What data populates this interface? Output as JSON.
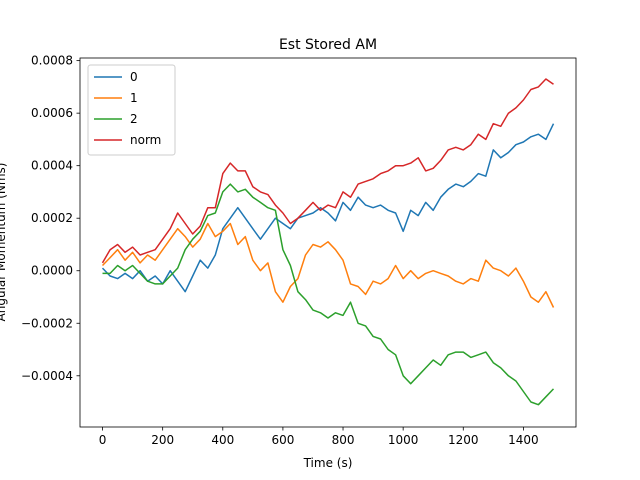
{
  "chart_data": {
    "type": "line",
    "title": "Est Stored AM",
    "xlabel": "Time (s)",
    "ylabel": "Angular Momentum (Nms)",
    "xlim": [
      -75,
      1575
    ],
    "ylim": [
      -0.000595,
      0.00081
    ],
    "xticks": [
      0,
      200,
      400,
      600,
      800,
      1000,
      1200,
      1400
    ],
    "yticks": [
      -0.0004,
      -0.0002,
      0.0,
      0.0002,
      0.0004,
      0.0006,
      0.0008
    ],
    "xtick_labels": [
      "0",
      "200",
      "400",
      "600",
      "800",
      "1000",
      "1200",
      "1400"
    ],
    "ytick_labels": [
      "−0.0004",
      "−0.0002",
      "0.0000",
      "0.0002",
      "0.0004",
      "0.0006",
      "0.0008"
    ],
    "grid": false,
    "legend": "upper-left",
    "series": [
      {
        "name": "0",
        "color": "#1f77b4",
        "x": [
          0,
          25,
          50,
          75,
          100,
          125,
          150,
          175,
          200,
          225,
          250,
          275,
          300,
          325,
          350,
          375,
          400,
          425,
          450,
          475,
          500,
          525,
          550,
          575,
          600,
          625,
          650,
          675,
          700,
          725,
          750,
          775,
          800,
          825,
          850,
          875,
          900,
          925,
          950,
          975,
          1000,
          1025,
          1050,
          1075,
          1100,
          1125,
          1150,
          1175,
          1200,
          1225,
          1250,
          1275,
          1300,
          1325,
          1350,
          1375,
          1400,
          1425,
          1450,
          1475,
          1500
        ],
        "y": [
          1e-05,
          -2e-05,
          -3e-05,
          -1e-05,
          -3e-05,
          0.0,
          -4e-05,
          -2e-05,
          -5e-05,
          0.0,
          -4e-05,
          -8e-05,
          -2e-05,
          4e-05,
          1e-05,
          6e-05,
          0.00016,
          0.0002,
          0.00024,
          0.0002,
          0.00016,
          0.00012,
          0.00016,
          0.0002,
          0.00018,
          0.00016,
          0.0002,
          0.00021,
          0.00022,
          0.00024,
          0.00022,
          0.00019,
          0.00026,
          0.00023,
          0.00028,
          0.00025,
          0.00024,
          0.00025,
          0.00023,
          0.00022,
          0.00015,
          0.00023,
          0.00021,
          0.00026,
          0.00023,
          0.00028,
          0.00031,
          0.00033,
          0.00032,
          0.00034,
          0.00037,
          0.00036,
          0.00046,
          0.00043,
          0.00045,
          0.00048,
          0.00049,
          0.00051,
          0.00052,
          0.0005,
          0.00056
        ]
      },
      {
        "name": "1",
        "color": "#ff7f0e",
        "x": [
          0,
          25,
          50,
          75,
          100,
          125,
          150,
          175,
          200,
          225,
          250,
          275,
          300,
          325,
          350,
          375,
          400,
          425,
          450,
          475,
          500,
          525,
          550,
          575,
          600,
          625,
          650,
          675,
          700,
          725,
          750,
          775,
          800,
          825,
          850,
          875,
          900,
          925,
          950,
          975,
          1000,
          1025,
          1050,
          1075,
          1100,
          1125,
          1150,
          1175,
          1200,
          1225,
          1250,
          1275,
          1300,
          1325,
          1350,
          1375,
          1400,
          1425,
          1450,
          1475,
          1500
        ],
        "y": [
          2e-05,
          5e-05,
          8e-05,
          4e-05,
          7e-05,
          3e-05,
          6e-05,
          4e-05,
          8e-05,
          0.00012,
          0.00016,
          0.00013,
          9e-05,
          0.00012,
          0.00018,
          0.00013,
          0.00015,
          0.00018,
          0.0001,
          0.00013,
          4e-05,
          0.0,
          3e-05,
          -8e-05,
          -0.00012,
          -6e-05,
          -3e-05,
          6e-05,
          0.0001,
          9e-05,
          0.00011,
          8e-05,
          4e-05,
          -5e-05,
          -6e-05,
          -9e-05,
          -4e-05,
          -5e-05,
          -3e-05,
          2e-05,
          -3e-05,
          0.0,
          -3e-05,
          -1e-05,
          0.0,
          -1e-05,
          -2e-05,
          -4e-05,
          -5e-05,
          -3e-05,
          -4e-05,
          4e-05,
          1e-05,
          0.0,
          -2e-05,
          1e-05,
          -4e-05,
          -0.0001,
          -0.00012,
          -8e-05,
          -0.00014
        ]
      },
      {
        "name": "2",
        "color": "#2ca02c",
        "x": [
          0,
          25,
          50,
          75,
          100,
          125,
          150,
          175,
          200,
          225,
          250,
          275,
          300,
          325,
          350,
          375,
          400,
          425,
          450,
          475,
          500,
          525,
          550,
          575,
          600,
          625,
          650,
          675,
          700,
          725,
          750,
          775,
          800,
          825,
          850,
          875,
          900,
          925,
          950,
          975,
          1000,
          1025,
          1050,
          1075,
          1100,
          1125,
          1150,
          1175,
          1200,
          1225,
          1250,
          1275,
          1300,
          1325,
          1350,
          1375,
          1400,
          1425,
          1450,
          1475,
          1500
        ],
        "y": [
          -1e-05,
          -1e-05,
          2e-05,
          0.0,
          2e-05,
          -1e-05,
          -4e-05,
          -5e-05,
          -5e-05,
          -2e-05,
          1e-05,
          8e-05,
          0.00012,
          0.00015,
          0.00021,
          0.00022,
          0.0003,
          0.00033,
          0.0003,
          0.00031,
          0.00028,
          0.00026,
          0.00024,
          0.00023,
          8e-05,
          2e-05,
          -8e-05,
          -0.00011,
          -0.00015,
          -0.00016,
          -0.00018,
          -0.00016,
          -0.00017,
          -0.00012,
          -0.0002,
          -0.00021,
          -0.00025,
          -0.00026,
          -0.0003,
          -0.00032,
          -0.0004,
          -0.00043,
          -0.0004,
          -0.00037,
          -0.00034,
          -0.00036,
          -0.00032,
          -0.00031,
          -0.00031,
          -0.00033,
          -0.00032,
          -0.00031,
          -0.00035,
          -0.00037,
          -0.0004,
          -0.00042,
          -0.00046,
          -0.0005,
          -0.00051,
          -0.00048,
          -0.00045
        ]
      },
      {
        "name": "norm",
        "color": "#d62728",
        "x": [
          0,
          25,
          50,
          75,
          100,
          125,
          150,
          175,
          200,
          225,
          250,
          275,
          300,
          325,
          350,
          375,
          400,
          425,
          450,
          475,
          500,
          525,
          550,
          575,
          600,
          625,
          650,
          675,
          700,
          725,
          750,
          775,
          800,
          825,
          850,
          875,
          900,
          925,
          950,
          975,
          1000,
          1025,
          1050,
          1075,
          1100,
          1125,
          1150,
          1175,
          1200,
          1225,
          1250,
          1275,
          1300,
          1325,
          1350,
          1375,
          1400,
          1425,
          1450,
          1475,
          1500
        ],
        "y": [
          3e-05,
          8e-05,
          0.0001,
          7e-05,
          9e-05,
          6e-05,
          7e-05,
          8e-05,
          0.00012,
          0.00016,
          0.00022,
          0.00018,
          0.00014,
          0.00017,
          0.00024,
          0.00024,
          0.00037,
          0.00041,
          0.00038,
          0.00038,
          0.00032,
          0.0003,
          0.00029,
          0.00025,
          0.00022,
          0.00018,
          0.0002,
          0.00023,
          0.00026,
          0.00023,
          0.00025,
          0.00024,
          0.0003,
          0.00028,
          0.00033,
          0.00034,
          0.00035,
          0.00037,
          0.00038,
          0.0004,
          0.0004,
          0.00041,
          0.00043,
          0.00038,
          0.00039,
          0.00042,
          0.00046,
          0.00047,
          0.00046,
          0.00048,
          0.00052,
          0.0005,
          0.00056,
          0.00055,
          0.0006,
          0.00062,
          0.00065,
          0.00069,
          0.0007,
          0.00073,
          0.00071
        ]
      }
    ]
  }
}
